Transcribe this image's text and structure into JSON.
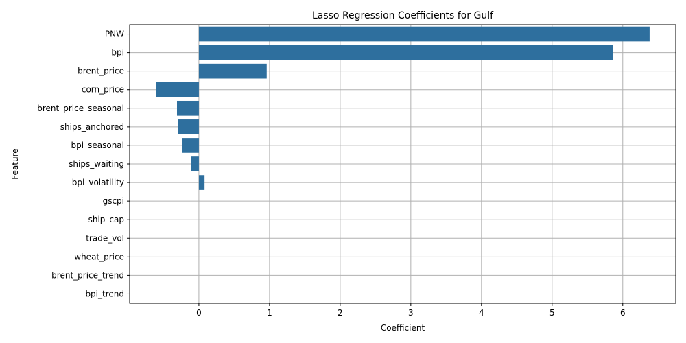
{
  "chart_data": {
    "type": "bar",
    "orientation": "horizontal",
    "title": "Lasso Regression Coefficients for Gulf",
    "xlabel": "Coefficient",
    "ylabel": "Feature",
    "xlim": [
      -0.98,
      6.75
    ],
    "x_ticks": [
      0,
      1,
      2,
      3,
      4,
      5,
      6
    ],
    "x_tick_labels": [
      "0",
      "1",
      "2",
      "3",
      "4",
      "5",
      "6"
    ],
    "grid": true,
    "bar_color": "#2e6f9e",
    "categories": [
      "PNW",
      "bpi",
      "brent_price",
      "corn_price",
      "brent_price_seasonal",
      "ships_anchored",
      "bpi_seasonal",
      "ships_waiting",
      "bpi_volatility",
      "gscpi",
      "ship_cap",
      "trade_vol",
      "wheat_price",
      "brent_price_trend",
      "bpi_trend"
    ],
    "values": [
      6.38,
      5.86,
      0.96,
      -0.61,
      -0.31,
      -0.3,
      -0.24,
      -0.11,
      0.08,
      0,
      0,
      0,
      0,
      0,
      0
    ]
  }
}
